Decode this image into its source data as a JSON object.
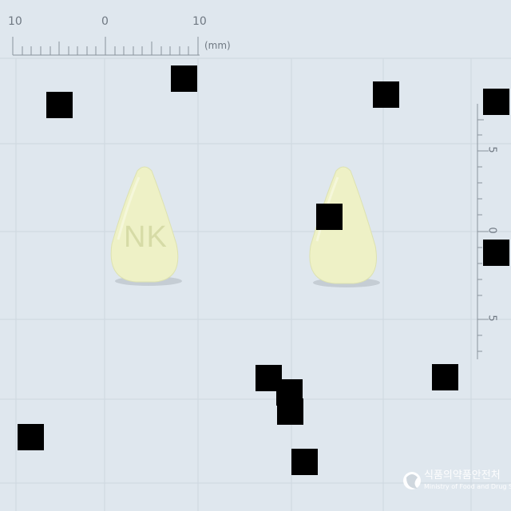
{
  "ruler": {
    "top_labels": [
      "10",
      "0",
      "10"
    ],
    "unit": "(mm)",
    "side_labels": [
      "5",
      "0",
      "5"
    ]
  },
  "tablets": [
    {
      "imprint": "NK",
      "color": "#eef1c6"
    },
    {
      "imprint": "",
      "color": "#eef1c6"
    }
  ],
  "watermark": {
    "korean": "식품의약품안전처",
    "english": "Ministry of Food and Drug Safety"
  },
  "colors": {
    "background": "#dfe7ee",
    "grid": "#c9d3dc",
    "ruler": "#8a939c",
    "tablet": "#eef1c6",
    "redaction": "#000000"
  }
}
